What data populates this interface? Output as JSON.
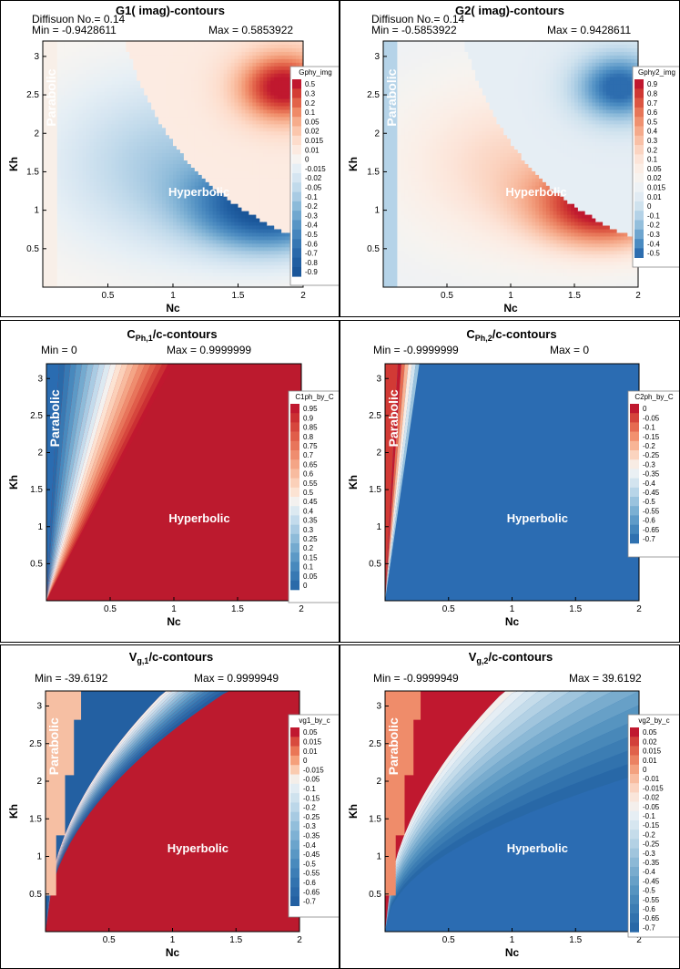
{
  "chart_data": [
    {
      "type": "heatmap",
      "title": "G1( imag)-contours",
      "info_left": [
        "Diffisuon No.= 0.14",
        "Min = -0.9428611"
      ],
      "info_right": "Max = 0.5853922",
      "xlabel": "Nc",
      "ylabel": "Kh",
      "xlim": [
        0,
        2
      ],
      "ylim": [
        0,
        3.2
      ],
      "x_ticks": [
        "0.5",
        "1",
        "1.5",
        "2"
      ],
      "y_ticks": [
        "0.5",
        "1",
        "1.5",
        "2",
        "2.5",
        "3"
      ],
      "legend_title": "Gphy_img",
      "legend_levels": [
        "0.5",
        "0.3",
        "0.2",
        "0.1",
        "0.05",
        "0.02",
        "0.015",
        "0.01",
        "0",
        "-0.015",
        "-0.02",
        "-0.05",
        "-0.1",
        "-0.2",
        "-0.3",
        "-0.4",
        "-0.5",
        "-0.6",
        "-0.7",
        "-0.8",
        "-0.9"
      ],
      "legend_colors": [
        "#c0182f",
        "#d33d35",
        "#e2634a",
        "#ef8a67",
        "#f6ac8b",
        "#fbc6ac",
        "#fddccb",
        "#fceae0",
        "#f7f4f1",
        "#e6eff5",
        "#d5e5f1",
        "#c1daeb",
        "#a9cbe3",
        "#8cbad9",
        "#70a7cf",
        "#5895c5",
        "#4585bd",
        "#3677b3",
        "#2a69aa",
        "#205ea1",
        "#1a5699"
      ],
      "regions": [
        {
          "label": "Parabolic",
          "color": "#f8efe8"
        },
        {
          "label": "Hyperbolic"
        }
      ]
    },
    {
      "type": "heatmap",
      "title": "G2( imag)-contours",
      "info_left": [
        "Diffisuon No.= 0.14",
        "Min = -0.5853922"
      ],
      "info_right": "Max = 0.9428611",
      "xlabel": "Nc",
      "ylabel": "Kh",
      "xlim": [
        0,
        2
      ],
      "ylim": [
        0,
        3.2
      ],
      "x_ticks": [
        "0.5",
        "1",
        "1.5",
        "2"
      ],
      "y_ticks": [
        "0.5",
        "1",
        "1.5",
        "2",
        "2.5",
        "3"
      ],
      "legend_title": "Gphy2_img",
      "legend_levels": [
        "0.9",
        "0.8",
        "0.7",
        "0.6",
        "0.5",
        "0.4",
        "0.3",
        "0.2",
        "0.1",
        "0.05",
        "0.02",
        "0.015",
        "0.01",
        "0",
        "-0.1",
        "-0.2",
        "-0.3",
        "-0.4",
        "-0.5"
      ],
      "legend_colors": [
        "#c0182f",
        "#cf3833",
        "#dc5642",
        "#e77658",
        "#ef9170",
        "#f5aa8b",
        "#f9c0a6",
        "#fbd4c1",
        "#fce4d8",
        "#fbeee6",
        "#f7f3ef",
        "#eef2f5",
        "#e1ebf3",
        "#cfe2ee",
        "#b4d2e7",
        "#94bfdc",
        "#6ea5cf",
        "#4a8bc1",
        "#2d6daf"
      ],
      "regions": [
        {
          "label": "Parabolic",
          "color": "#b5d3e8"
        },
        {
          "label": "Hyperbolic"
        }
      ]
    },
    {
      "type": "heatmap",
      "title_main": "C",
      "title_sub": "Ph,1",
      "title_rest": "/c-contours",
      "info_left": [
        "Min = 0"
      ],
      "info_right": "Max = 0.9999999",
      "xlabel": "Nc",
      "ylabel": "Kh",
      "xlim": [
        0,
        2
      ],
      "ylim": [
        0,
        3.2
      ],
      "x_ticks": [
        "0.5",
        "1",
        "1.5",
        "2"
      ],
      "y_ticks": [
        "0.5",
        "1",
        "1.5",
        "2",
        "2.5",
        "3"
      ],
      "legend_title": "C1ph_by_C",
      "legend_levels": [
        "0.95",
        "0.9",
        "0.85",
        "0.8",
        "0.75",
        "0.7",
        "0.65",
        "0.6",
        "0.55",
        "0.5",
        "0.45",
        "0.4",
        "0.35",
        "0.3",
        "0.25",
        "0.2",
        "0.15",
        "0.1",
        "0.05",
        "0"
      ],
      "legend_colors": [
        "#c0182f",
        "#cb2f33",
        "#d6463d",
        "#e05d4a",
        "#e8755b",
        "#ef8d6f",
        "#f4a586",
        "#f8bb9f",
        "#fbd0b9",
        "#fce3d3",
        "#f3f1ef",
        "#dce9f1",
        "#c3dbec",
        "#a9cbe3",
        "#8ebbd9",
        "#74aacf",
        "#5c99c6",
        "#4889bd",
        "#3879b3",
        "#2a6aa9"
      ],
      "regions": [
        {
          "label": "Parabolic",
          "color": "#2a6cb1"
        },
        {
          "label": "Hyperbolic",
          "color": "#bc1a2e"
        }
      ]
    },
    {
      "type": "heatmap",
      "title_main": "C",
      "title_sub": "Ph,2",
      "title_rest": "/c-contours",
      "info_left": [
        "Min = -0.9999999"
      ],
      "info_right": "Max = 0",
      "xlabel": "Nc",
      "ylabel": "Kh",
      "xlim": [
        0,
        2
      ],
      "ylim": [
        0,
        3.2
      ],
      "x_ticks": [
        "0.5",
        "1",
        "1.5",
        "2"
      ],
      "y_ticks": [
        "0.5",
        "1",
        "1.5",
        "2",
        "2.5",
        "3"
      ],
      "legend_title": "C2ph_by_C",
      "legend_levels": [
        "0",
        "-0.05",
        "-0.1",
        "-0.15",
        "-0.2",
        "-0.25",
        "-0.3",
        "-0.35",
        "-0.4",
        "-0.45",
        "-0.5",
        "-0.55",
        "-0.6",
        "-0.65",
        "-0.7"
      ],
      "legend_colors": [
        "#c0182f",
        "#d5443b",
        "#e66b51",
        "#f2916f",
        "#f8b596",
        "#fbd4bf",
        "#f8ece4",
        "#eaf0f4",
        "#d3e4ef",
        "#b8d5e8",
        "#9ac3de",
        "#7bb0d3",
        "#5e9bc8",
        "#4486bc",
        "#2f71b0"
      ],
      "regions": [
        {
          "label": "Parabolic",
          "color": "#d23a35"
        },
        {
          "label": "Hyperbolic",
          "color": "#2b6cb2"
        }
      ]
    },
    {
      "type": "heatmap",
      "title_main": "V",
      "title_sub": "g,1",
      "title_rest": "/c-contours",
      "info_left": [
        "Min = -39.6192"
      ],
      "info_right": "Max = 0.9999949",
      "xlabel": "Nc",
      "ylabel": "Kh",
      "xlim": [
        0,
        2
      ],
      "ylim": [
        0,
        3.2
      ],
      "x_ticks": [
        "0.5",
        "1",
        "1.5",
        "2"
      ],
      "y_ticks": [
        "0.5",
        "1",
        "1.5",
        "2",
        "2.5",
        "3"
      ],
      "legend_title": "vg1_by_c",
      "legend_levels": [
        "0.05",
        "0.015",
        "0.01",
        "0",
        "-0.015",
        "-0.05",
        "-0.1",
        "-0.15",
        "-0.2",
        "-0.25",
        "-0.3",
        "-0.35",
        "-0.4",
        "-0.45",
        "-0.5",
        "-0.55",
        "-0.6",
        "-0.65",
        "-0.7"
      ],
      "legend_colors": [
        "#c0182f",
        "#d84a3d",
        "#ea7656",
        "#f5a07b",
        "#facbb0",
        "#f4eee9",
        "#e2ecf3",
        "#cfe2ee",
        "#bcd7e9",
        "#a7cae2",
        "#92bedb",
        "#7eb1d4",
        "#6ba4cc",
        "#5997c4",
        "#498abd",
        "#3d7eb6",
        "#3273af",
        "#2a69a9",
        "#2360a2"
      ],
      "regions": [
        {
          "label": "Parabolic",
          "color": "#f6bfa3"
        },
        {
          "label": "Hyperbolic",
          "color": "#bc1a2e"
        }
      ]
    },
    {
      "type": "heatmap",
      "title_main": "V",
      "title_sub": "g,2",
      "title_rest": "/c-contours",
      "info_left": [
        "Min = -0.9999949"
      ],
      "info_right": "Max = 39.6192",
      "xlabel": "Nc",
      "ylabel": "Kh",
      "xlim": [
        0,
        2
      ],
      "ylim": [
        0,
        3.2
      ],
      "x_ticks": [
        "0.5",
        "1",
        "1.5",
        "2"
      ],
      "y_ticks": [
        "0.5",
        "1",
        "1.5",
        "2",
        "2.5",
        "3"
      ],
      "legend_title": "vg2_by_c",
      "legend_levels": [
        "0.05",
        "0.02",
        "0.015",
        "0.01",
        "0",
        "-0.01",
        "-0.015",
        "-0.02",
        "-0.05",
        "-0.1",
        "-0.15",
        "-0.2",
        "-0.25",
        "-0.3",
        "-0.35",
        "-0.4",
        "-0.45",
        "-0.5",
        "-0.55",
        "-0.6",
        "-0.65",
        "-0.7"
      ],
      "legend_colors": [
        "#c0182f",
        "#d2403a",
        "#e0624b",
        "#eb8262",
        "#f3a17f",
        "#f8bca0",
        "#fbd3c0",
        "#fae5da",
        "#f4efec",
        "#e6eef4",
        "#d6e6f0",
        "#c5dcea",
        "#b3d1e4",
        "#a0c5dd",
        "#8cb9d6",
        "#79acce",
        "#67a0c7",
        "#5694c0",
        "#4888b9",
        "#3c7db3",
        "#3172ad",
        "#2868a7"
      ],
      "regions": [
        {
          "label": "Parabolic",
          "color": "#ef8c6a"
        },
        {
          "label": "Hyperbolic",
          "color": "#2b6cb2"
        }
      ]
    }
  ]
}
